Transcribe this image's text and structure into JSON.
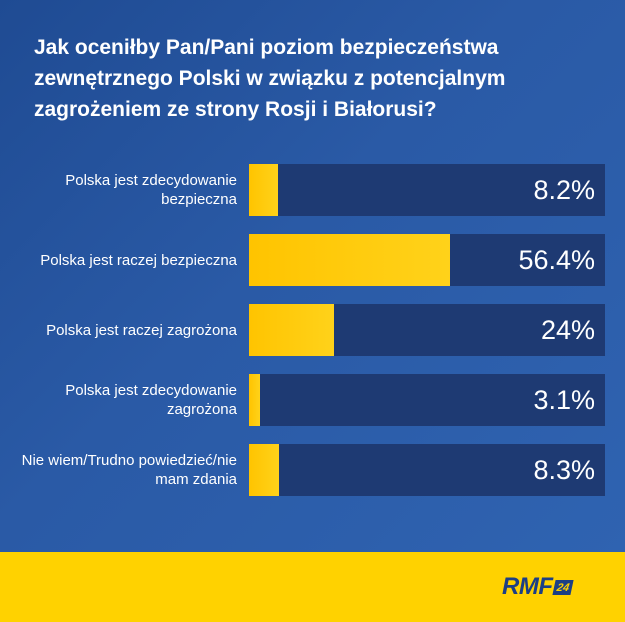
{
  "chart_data": {
    "type": "bar",
    "title": "Jak oceniłby Pan/Pani poziom bezpieczeństwa zewnętrznego Polski w związku z potencjalnym zagrożeniem ze strony Rosji i Białorusi?",
    "categories": [
      "Polska jest zdecydowanie bezpieczna",
      "Polska jest raczej bezpieczna",
      "Polska jest raczej zagrożona",
      "Polska jest zdecydowanie zagrożona",
      "Nie wiem/Trudno powiedzieć/nie mam zdania"
    ],
    "values": [
      8.2,
      56.4,
      24,
      3.1,
      8.3
    ],
    "value_labels": [
      "8.2%",
      "56.4%",
      "24%",
      "3.1%",
      "8.3%"
    ],
    "unit": "%",
    "xlim": [
      0,
      100
    ],
    "orientation": "horizontal",
    "colors": {
      "bar": "#ffc400",
      "track": "#1e3a73",
      "background": "#2a5aa6",
      "footer": "#ffd200"
    }
  },
  "brand": {
    "logo_text": "RMF",
    "logo_number": "24"
  }
}
